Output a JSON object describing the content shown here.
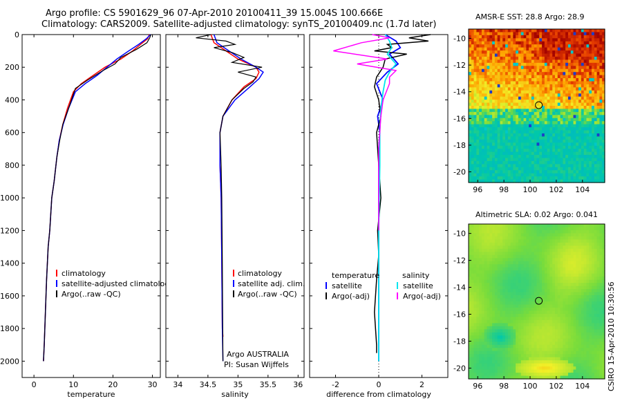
{
  "header": {
    "line1": "Argo profile: CS 5901629_96 07-Apr-2010 20100411_39 15.004S 100.666E",
    "line2": "Climatology: CARS2009. Satellite-adjusted climatology: synTS_20100409.nc (1.7d later)"
  },
  "stamp": "CSIRO 15-Apr-2010 10:30:56",
  "colors": {
    "clim": "#ff0000",
    "satellite": "#0000ff",
    "argo": "#000000",
    "sal_satellite": "#00e5ee",
    "sal_argo": "#ff00ff"
  },
  "chart_data": [
    {
      "type": "line",
      "xlabel": "temperature",
      "ylabel": "",
      "xlim": [
        -3,
        32
      ],
      "ylim": [
        2100,
        0
      ],
      "xticks": [
        0,
        10,
        20,
        30
      ],
      "yticks": [
        0,
        200,
        400,
        600,
        800,
        1000,
        1200,
        1400,
        1600,
        1800,
        2000
      ],
      "legend": [
        "climatology",
        "satellite-adjusted climatology",
        "Argo(..raw -QC)"
      ],
      "series": [
        {
          "name": "climatology",
          "x": [
            29.2,
            28.8,
            27,
            25,
            22,
            18,
            15,
            12,
            10,
            8.5,
            7.3,
            6.4,
            5.8,
            5.1,
            4.5,
            4,
            3.6,
            3.2,
            2.9,
            2.6,
            2.4
          ],
          "y": [
            0,
            25,
            60,
            100,
            150,
            200,
            250,
            300,
            350,
            450,
            550,
            650,
            750,
            900,
            1000,
            1200,
            1300,
            1500,
            1700,
            1900,
            2000
          ]
        },
        {
          "name": "satellite-adjusted climatology",
          "x": [
            29.5,
            28.5,
            26.5,
            24,
            21,
            18.5,
            16,
            13,
            10.5,
            8.8,
            7.4,
            6.4,
            5.8,
            5.1,
            4.5,
            4,
            3.6,
            3.2,
            2.9,
            2.6,
            2.4
          ],
          "y": [
            0,
            25,
            60,
            100,
            150,
            200,
            250,
            300,
            350,
            450,
            550,
            650,
            750,
            900,
            1000,
            1200,
            1300,
            1500,
            1700,
            1900,
            2000
          ]
        },
        {
          "name": "Argo(..raw -QC)",
          "x": [
            29.6,
            29.3,
            28.6,
            26,
            22,
            20.5,
            17.5,
            13.5,
            10.5,
            8.8,
            7.3,
            6.5,
            5.8,
            5.1,
            4.5,
            4,
            3.6,
            3.2,
            2.9,
            2.6,
            2.4
          ],
          "y": [
            0,
            20,
            50,
            90,
            140,
            180,
            220,
            280,
            330,
            450,
            550,
            650,
            750,
            900,
            1000,
            1200,
            1300,
            1500,
            1700,
            1900,
            2000
          ]
        }
      ]
    },
    {
      "type": "line",
      "xlabel": "salinity",
      "xlim": [
        33.8,
        36.1
      ],
      "ylim": [
        2100,
        0
      ],
      "xticks": [
        34,
        34.5,
        35,
        35.5,
        36
      ],
      "legend": [
        "climatology",
        "satellite adj. clim.",
        "Argo(..raw -QC)"
      ],
      "annotation": [
        "Argo AUSTRALIA",
        "PI: Susan Wijffels"
      ],
      "series": [
        {
          "name": "climatology",
          "x": [
            34.55,
            34.6,
            34.8,
            35,
            35.3,
            35.35,
            35.3,
            35.1,
            34.9,
            34.75,
            34.7,
            34.7,
            34.72,
            34.73,
            34.74,
            34.75
          ],
          "y": [
            0,
            50,
            100,
            150,
            200,
            230,
            270,
            320,
            400,
            500,
            600,
            800,
            1000,
            1400,
            1800,
            1850
          ]
        },
        {
          "name": "satellite adj. clim.",
          "x": [
            34.6,
            34.65,
            34.85,
            35.05,
            35.3,
            35.42,
            35.35,
            35.2,
            34.95,
            34.75,
            34.7,
            34.7,
            34.72,
            34.73,
            34.74,
            34.75
          ],
          "y": [
            0,
            50,
            100,
            150,
            200,
            230,
            270,
            320,
            400,
            500,
            600,
            800,
            1000,
            1400,
            1800,
            2000
          ]
        },
        {
          "name": "Argo(..raw -QC)",
          "x": [
            34.55,
            34.3,
            34.8,
            34.95,
            34.6,
            34.9,
            35.1,
            34.9,
            35.4,
            35.0,
            35.3,
            35.25,
            35.1,
            34.9,
            34.75,
            34.7,
            34.72,
            34.73,
            34.74,
            34.75
          ],
          "y": [
            0,
            20,
            40,
            60,
            80,
            110,
            140,
            170,
            200,
            230,
            260,
            290,
            330,
            400,
            500,
            600,
            800,
            1000,
            1400,
            2000
          ]
        }
      ]
    },
    {
      "type": "line",
      "xlabel": "difference from climatology",
      "xlim": [
        -3.2,
        3.2
      ],
      "ylim": [
        2100,
        0
      ],
      "xticks": [
        -2,
        0,
        2
      ],
      "legend_left_title": "temperature",
      "legend_right_title": "salinity",
      "legend": [
        "satellite",
        "Argo(-adj)",
        "satellite",
        "Argo(-adj)"
      ],
      "series": [
        {
          "name": "satellite",
          "x": [
            0.3,
            0.8,
            1.0,
            0.5,
            0.9,
            0.4,
            -0.1,
            0.2,
            -0.05,
            0.05,
            0,
            0,
            0,
            0,
            0
          ],
          "y": [
            0,
            40,
            80,
            120,
            180,
            230,
            300,
            400,
            500,
            600,
            700,
            900,
            1200,
            1600,
            2000
          ]
        },
        {
          "name": "Argo(-adj)",
          "x": [
            2.4,
            1.4,
            2.3,
            0.4,
            0.6,
            -0.2,
            1.3,
            0.3,
            0.2,
            -0.1,
            -0.2,
            0,
            0.1,
            -0.1,
            0,
            0.1,
            -0.05,
            0,
            -0.1,
            -0.2,
            -0.1,
            -0.1
          ],
          "y": [
            0,
            20,
            40,
            60,
            80,
            100,
            120,
            150,
            200,
            260,
            320,
            400,
            500,
            600,
            800,
            1000,
            1200,
            1350,
            1500,
            1700,
            1900,
            1950
          ]
        },
        {
          "name": "satellite",
          "x": [
            0.3,
            0.5,
            0.6,
            0.4,
            0.8,
            0.5,
            0.3,
            0.2,
            0.1,
            0.05,
            0.05,
            0,
            0,
            0
          ],
          "y": [
            0,
            40,
            80,
            120,
            180,
            230,
            280,
            350,
            450,
            600,
            800,
            1200,
            1600,
            2000
          ]
        },
        {
          "name": "Argo(-adj)",
          "x": [
            -0.3,
            0.5,
            -0.8,
            -2.1,
            0.4,
            -1.0,
            0.8,
            0.5,
            0.5,
            0.2,
            0.1,
            0,
            0,
            0
          ],
          "y": [
            0,
            20,
            50,
            100,
            150,
            180,
            220,
            260,
            300,
            400,
            500,
            700,
            1000,
            1200
          ]
        }
      ]
    },
    {
      "type": "heatmap",
      "title": "AMSR-E SST: 28.8 Argo: 28.9",
      "xlim": [
        95.3,
        105.7
      ],
      "ylim": [
        -20.8,
        -9.3
      ],
      "xticks": [
        96,
        98,
        100,
        102,
        104
      ],
      "yticks": [
        -10,
        -12,
        -14,
        -16,
        -18,
        -20
      ],
      "marker": {
        "x": 100.666,
        "y": -15.004
      }
    },
    {
      "type": "heatmap",
      "title": "Altimetric SLA: 0.02 Argo: 0.041",
      "xlim": [
        95.3,
        105.7
      ],
      "ylim": [
        -20.8,
        -9.3
      ],
      "xticks": [
        96,
        98,
        100,
        102,
        104
      ],
      "yticks": [
        -10,
        -12,
        -14,
        -16,
        -18,
        -20
      ],
      "marker": {
        "x": 100.666,
        "y": -15.004
      }
    }
  ]
}
